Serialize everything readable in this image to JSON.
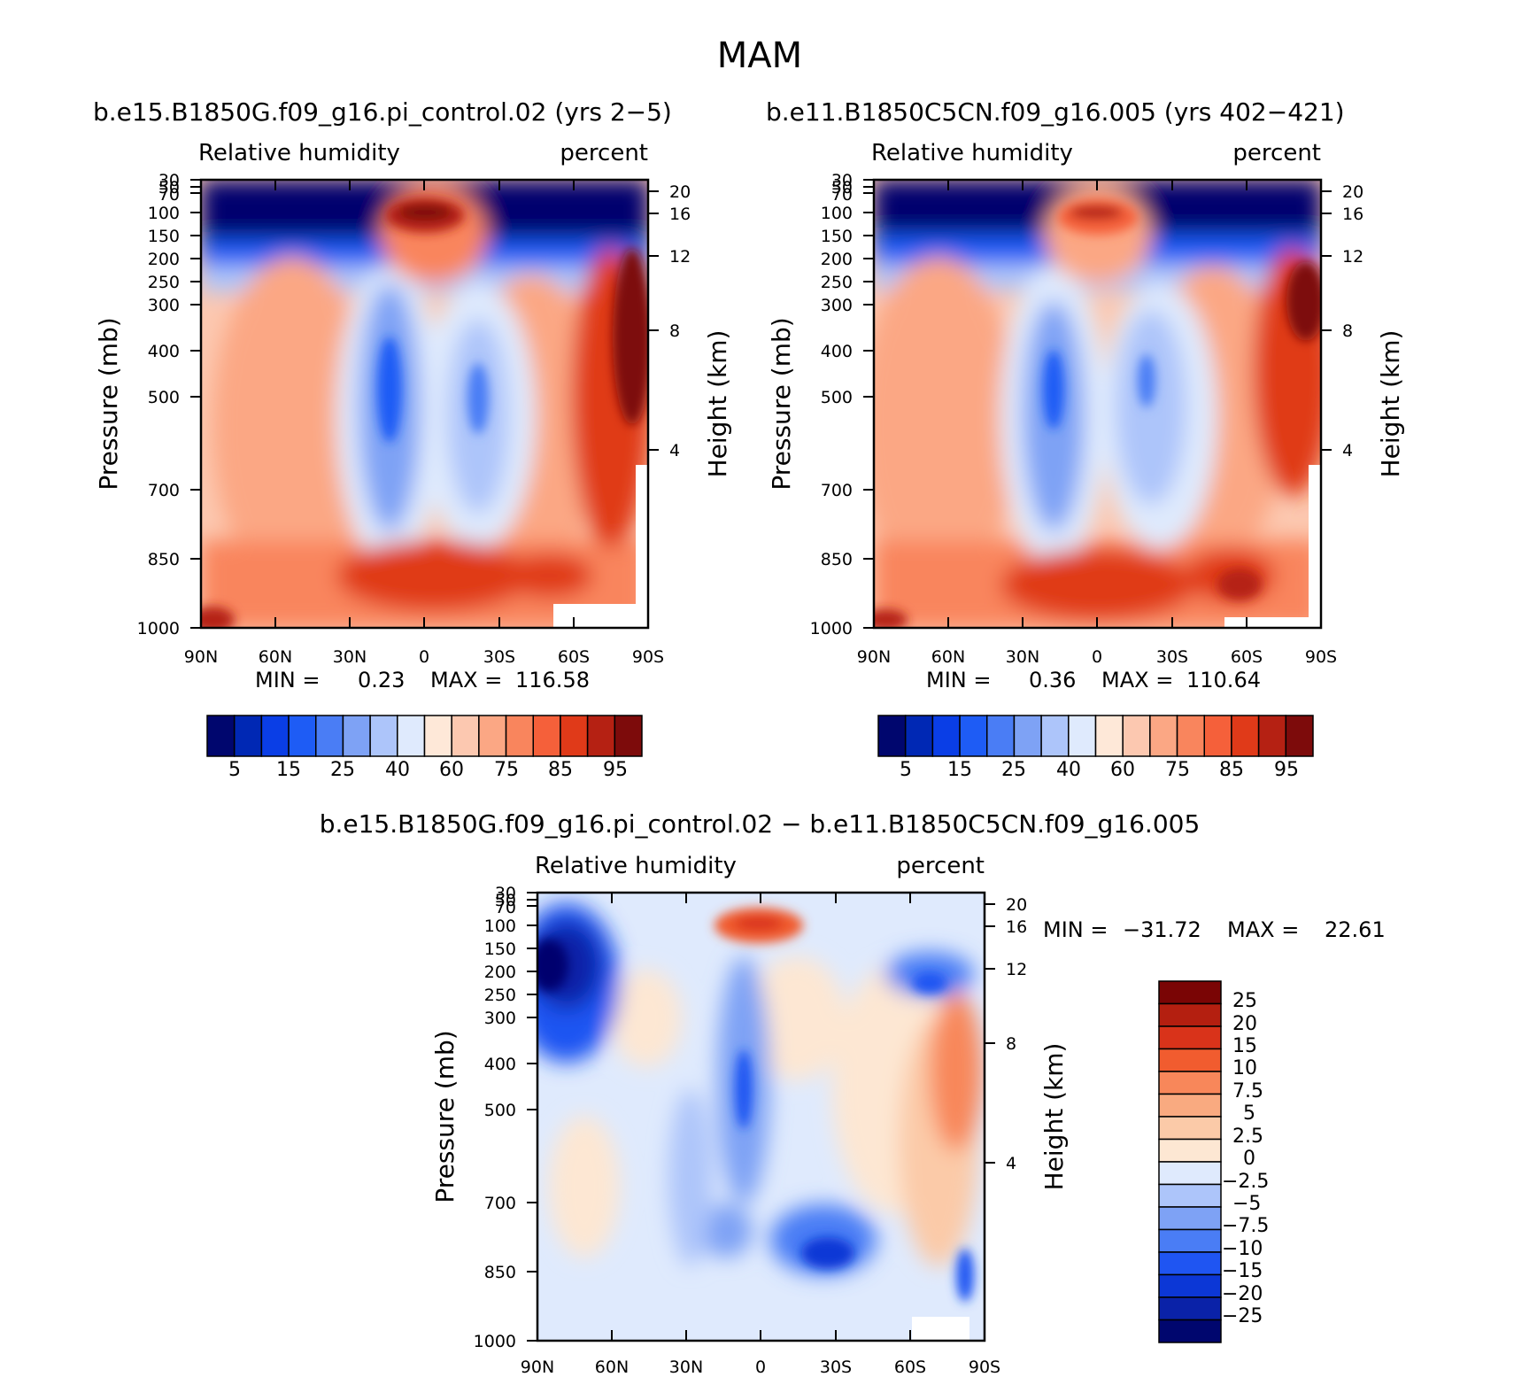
{
  "season_title": "MAM",
  "colors": {
    "rh_scale": [
      "#00066e",
      "#0028b4",
      "#0a3ee6",
      "#1e5cf5",
      "#4a7df5",
      "#7ea2f5",
      "#adc5fa",
      "#dfeafd",
      "#fee8d8",
      "#fcc8b0",
      "#fba784",
      "#f9855d",
      "#f5603a",
      "#e03a19",
      "#b52113",
      "#7d0b0b"
    ],
    "diff_scale": [
      "#00066e",
      "#0a22a8",
      "#0c37d6",
      "#1f55f2",
      "#4a7df5",
      "#7ea2f5",
      "#adc5fa",
      "#dfeafd",
      "#fde7d3",
      "#fbcaa8",
      "#f9aa80",
      "#f8875a",
      "#f15c2f",
      "#d9331a",
      "#b41f10",
      "#7a0505"
    ]
  },
  "chart_data": [
    {
      "type": "heatmap",
      "name": "control",
      "title": "b.e15.B1850G.f09_g16.pi_control.02 (yrs 2−5)",
      "left_label": "Relative humidity",
      "right_label": "percent",
      "ylabel": "Pressure (mb)",
      "y2label": "Height (km)",
      "pressure_ticks": [
        "30",
        "50",
        "70",
        "100",
        "150",
        "200",
        "250",
        "300",
        "400",
        "500",
        "700",
        "850",
        "1000"
      ],
      "height_ticks": [
        "20",
        "16",
        "12",
        "8",
        "4"
      ],
      "x_ticks": [
        "90N",
        "60N",
        "30N",
        "0",
        "30S",
        "60S",
        "90S"
      ],
      "min_label": "MIN =",
      "min_value": "0.23",
      "max_label": "MAX =",
      "max_value": "116.58",
      "colorbar_labels": [
        "5",
        "15",
        "25",
        "40",
        "60",
        "75",
        "85",
        "95"
      ]
    },
    {
      "type": "heatmap",
      "name": "case",
      "title": "b.e11.B1850C5CN.f09_g16.005 (yrs 402−421)",
      "left_label": "Relative humidity",
      "right_label": "percent",
      "ylabel": "Pressure (mb)",
      "y2label": "Height (km)",
      "pressure_ticks": [
        "30",
        "50",
        "70",
        "100",
        "150",
        "200",
        "250",
        "300",
        "400",
        "500",
        "700",
        "850",
        "1000"
      ],
      "height_ticks": [
        "20",
        "16",
        "12",
        "8",
        "4"
      ],
      "x_ticks": [
        "90N",
        "60N",
        "30N",
        "0",
        "30S",
        "60S",
        "90S"
      ],
      "min_label": "MIN =",
      "min_value": "0.36",
      "max_label": "MAX =",
      "max_value": "110.64",
      "colorbar_labels": [
        "5",
        "15",
        "25",
        "40",
        "60",
        "75",
        "85",
        "95"
      ]
    },
    {
      "type": "heatmap",
      "name": "difference",
      "title": "b.e15.B1850G.f09_g16.pi_control.02 − b.e11.B1850C5CN.f09_g16.005",
      "left_label": "Relative humidity",
      "right_label": "percent",
      "ylabel": "Pressure (mb)",
      "y2label": "Height (km)",
      "pressure_ticks": [
        "30",
        "50",
        "70",
        "100",
        "150",
        "200",
        "250",
        "300",
        "400",
        "500",
        "700",
        "850",
        "1000"
      ],
      "height_ticks": [
        "20",
        "16",
        "12",
        "8",
        "4"
      ],
      "x_ticks": [
        "90N",
        "60N",
        "30N",
        "0",
        "30S",
        "60S",
        "90S"
      ],
      "min_label": "MIN =",
      "min_value": "−31.72",
      "max_label": "MAX =",
      "max_value": "22.61",
      "colorbar_labels": [
        "25",
        "20",
        "15",
        "10",
        "7.5",
        "5",
        "2.5",
        "0",
        "−2.5",
        "−5",
        "−7.5",
        "−10",
        "−15",
        "−20",
        "−25"
      ]
    }
  ]
}
